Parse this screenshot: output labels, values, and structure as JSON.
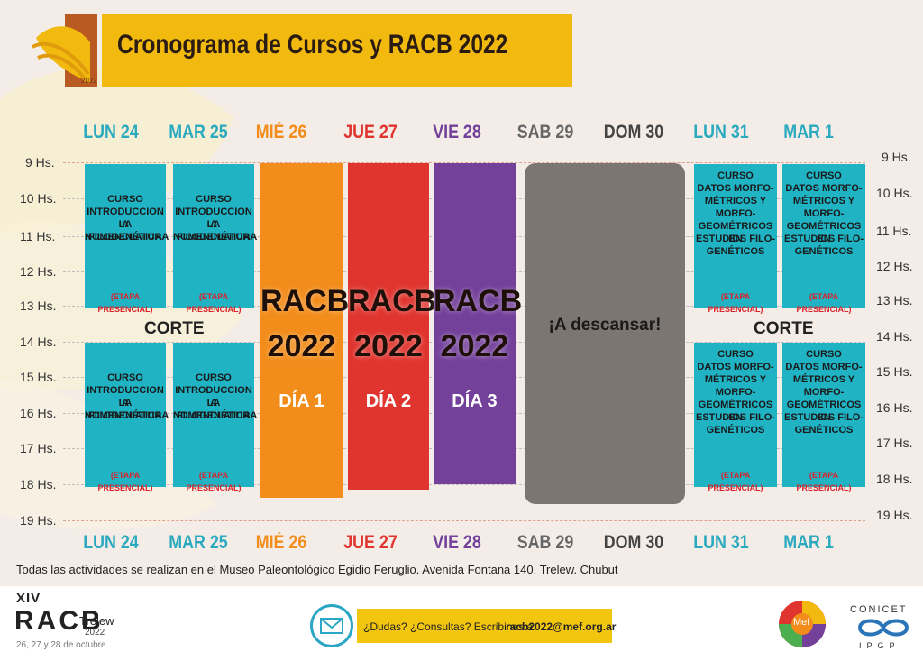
{
  "title": "Cronograma de Cursos y RACB 2022",
  "logo_year": "2022",
  "days": [
    {
      "label": "LUN 24",
      "color": "#2aa9bf"
    },
    {
      "label": "MAR 25",
      "color": "#2aa9bf"
    },
    {
      "label": "MIÉ 26",
      "color": "#f28c1a"
    },
    {
      "label": "JUE 27",
      "color": "#e0352f"
    },
    {
      "label": "VIE 28",
      "color": "#73409a"
    },
    {
      "label": "SAB 29",
      "color": "#666666"
    },
    {
      "label": "DOM 30",
      "color": "#444444"
    },
    {
      "label": "LUN 31",
      "color": "#2aa9bf"
    },
    {
      "label": "MAR 1",
      "color": "#2aa9bf"
    }
  ],
  "hours": [
    "9 Hs.",
    "10 Hs.",
    "11 Hs.",
    "12 Hs.",
    "13 Hs.",
    "14 Hs.",
    "15 Hs.",
    "16 Hs.",
    "17 Hs.",
    "18 Hs.",
    "19 Hs."
  ],
  "course_intro": {
    "text": [
      "CURSO",
      "INTRODUCCION A",
      "LA NOMENCLATURA",
      "FILOGENÉTICA"
    ],
    "etapa": "(ETAPA PRESENCIAL)"
  },
  "course_datos": {
    "text": [
      "CURSO",
      "DATOS MORFO-",
      "MÉTRICOS Y",
      "MORFO-",
      "GEOMÉTRICOS EN",
      "ESTUDIOS FILO-",
      "GENÉTICOS"
    ],
    "etapa": "(ETAPA PRESENCIAL)"
  },
  "corte": "CORTE",
  "racb": {
    "line1": "RACB",
    "line2": "2022"
  },
  "dia": [
    "DÍA 1",
    "DÍA 2",
    "DÍA 3"
  ],
  "descanso": "¡A descansar!",
  "footnote": "Todas las actividades se realizan en el Museo Paleontológico Egidio Feruglio. Avenida Fontana 140. Trelew. Chubut",
  "footer": {
    "edition": "XIV",
    "racb": "RACB",
    "city": "Trelew",
    "year": "2022",
    "dates": "26, 27 y 28 de octubre",
    "contact_text": "¿Dudas? ¿Consultas? Escribinos a",
    "contact_email": "racb2022@mef.org.ar",
    "mef": "Mef",
    "conicet": "CONICET",
    "ipgp": "IPGP"
  },
  "colors": {
    "teal": "#1fb3c4",
    "orange": "#f28c1a",
    "red": "#e0352f",
    "purple": "#73409a",
    "gray": "#7c7672",
    "yellow": "#f2b90f"
  }
}
